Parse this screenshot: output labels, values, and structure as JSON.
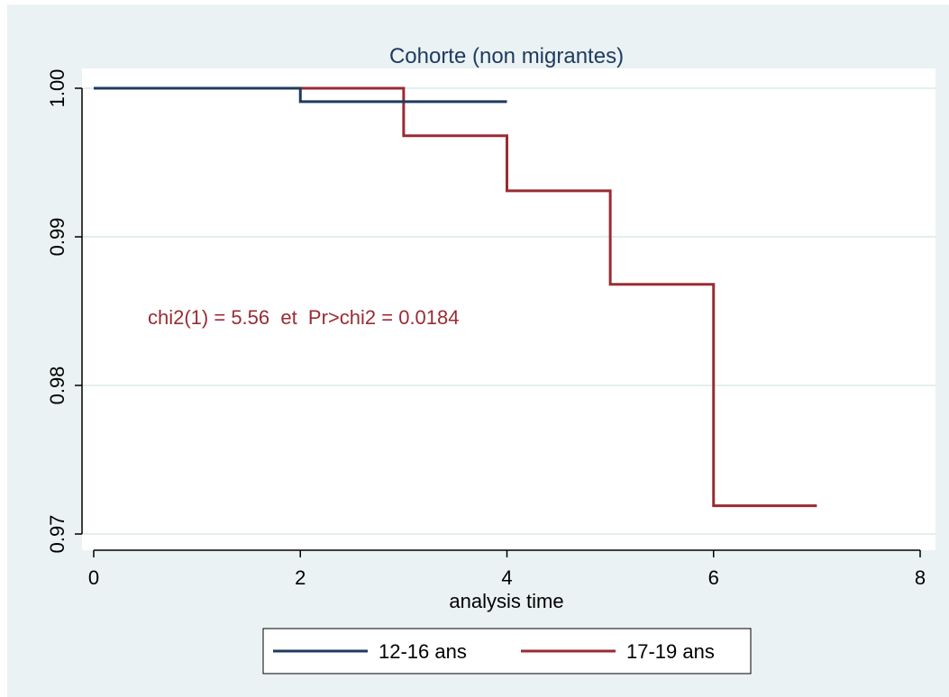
{
  "chart_data": {
    "type": "line",
    "title": "Cohorte (non migrantes)",
    "xlabel": "analysis time",
    "ylabel": "",
    "xlim": [
      0,
      8
    ],
    "ylim": [
      0.97,
      1.0
    ],
    "xticks": [
      0,
      2,
      4,
      6,
      8
    ],
    "yticks": [
      0.97,
      0.98,
      0.99,
      1.0
    ],
    "xtick_labels": [
      "0",
      "2",
      "4",
      "6",
      "8"
    ],
    "ytick_labels": [
      "0.97",
      "0.98",
      "0.99",
      "1.00"
    ],
    "grid": "horizontal",
    "step": true,
    "series": [
      {
        "name": "12-16 ans",
        "color": "#1f3a5f",
        "x": [
          0,
          2,
          4
        ],
        "y": [
          1.0,
          0.9991,
          0.9991
        ]
      },
      {
        "name": "17-19 ans",
        "color": "#9a2b33",
        "x": [
          0,
          3,
          4,
          5,
          6,
          7
        ],
        "y": [
          1.0,
          0.9968,
          0.9931,
          0.9868,
          0.9719,
          0.9719
        ]
      }
    ],
    "annotation": "chi2(1) = 5.56  et  Pr>chi2 = 0.0184",
    "legend": {
      "position": "bottom"
    }
  },
  "colors": {
    "outer_background": "#eaf2f3",
    "plot_background": "#ffffff",
    "grid": "#e4eeee",
    "title": "#1f3a5f",
    "annotation": "#9a2b33"
  }
}
